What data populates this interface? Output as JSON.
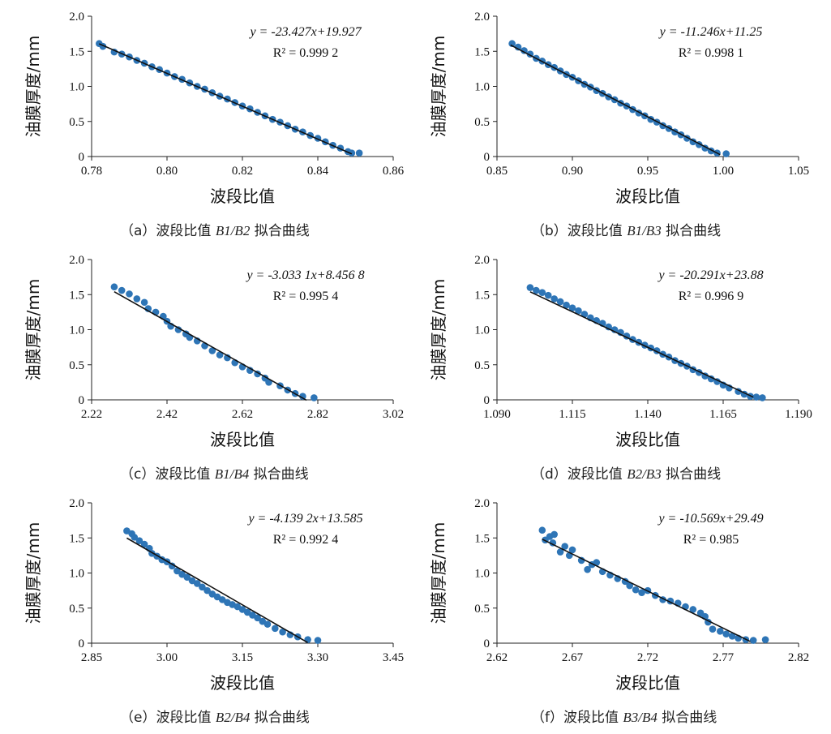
{
  "chart_data": [
    {
      "type": "scatter",
      "id": "a",
      "xlabel": "波段比值",
      "ylabel": "油膜厚度/mm",
      "xlim": [
        0.78,
        0.86
      ],
      "ylim": [
        0,
        2.0
      ],
      "xticks": [
        "0.78",
        "0.80",
        "0.82",
        "0.84",
        "0.86"
      ],
      "yticks": [
        "0",
        "0.5",
        "1.0",
        "1.5",
        "2.0"
      ],
      "equation": "y = -23.427x+19.927",
      "r2": "R² = 0.999 2",
      "fit": {
        "slope": -23.427,
        "intercept": 19.927,
        "x_range": [
          0.782,
          0.849
        ]
      },
      "points": [
        [
          0.782,
          1.61
        ],
        [
          0.783,
          1.57
        ],
        [
          0.786,
          1.49
        ],
        [
          0.788,
          1.46
        ],
        [
          0.79,
          1.42
        ],
        [
          0.792,
          1.37
        ],
        [
          0.794,
          1.33
        ],
        [
          0.796,
          1.28
        ],
        [
          0.798,
          1.24
        ],
        [
          0.8,
          1.19
        ],
        [
          0.802,
          1.14
        ],
        [
          0.804,
          1.1
        ],
        [
          0.806,
          1.05
        ],
        [
          0.808,
          1.0
        ],
        [
          0.81,
          0.96
        ],
        [
          0.812,
          0.91
        ],
        [
          0.814,
          0.86
        ],
        [
          0.816,
          0.82
        ],
        [
          0.818,
          0.77
        ],
        [
          0.82,
          0.72
        ],
        [
          0.822,
          0.68
        ],
        [
          0.824,
          0.63
        ],
        [
          0.826,
          0.58
        ],
        [
          0.828,
          0.53
        ],
        [
          0.83,
          0.49
        ],
        [
          0.832,
          0.44
        ],
        [
          0.834,
          0.39
        ],
        [
          0.836,
          0.35
        ],
        [
          0.838,
          0.3
        ],
        [
          0.84,
          0.26
        ],
        [
          0.842,
          0.21
        ],
        [
          0.844,
          0.16
        ],
        [
          0.846,
          0.12
        ],
        [
          0.848,
          0.07
        ],
        [
          0.849,
          0.05
        ],
        [
          0.851,
          0.05
        ]
      ]
    },
    {
      "type": "scatter",
      "id": "b",
      "xlabel": "波段比值",
      "ylabel": "油膜厚度/mm",
      "xlim": [
        0.85,
        1.05
      ],
      "ylim": [
        0,
        2.0
      ],
      "xticks": [
        "0.85",
        "0.90",
        "0.95",
        "1.00",
        "1.05"
      ],
      "yticks": [
        "0",
        "0.5",
        "1.0",
        "1.5",
        "2.0"
      ],
      "equation": "y = -11.246x+11.25",
      "r2": "R² = 0.998 1",
      "fit": {
        "slope": -11.246,
        "intercept": 11.25,
        "x_range": [
          0.859,
          0.998
        ]
      },
      "points": [
        [
          0.86,
          1.61
        ],
        [
          0.864,
          1.56
        ],
        [
          0.868,
          1.51
        ],
        [
          0.872,
          1.46
        ],
        [
          0.876,
          1.4
        ],
        [
          0.88,
          1.36
        ],
        [
          0.884,
          1.31
        ],
        [
          0.888,
          1.27
        ],
        [
          0.892,
          1.22
        ],
        [
          0.896,
          1.17
        ],
        [
          0.9,
          1.13
        ],
        [
          0.904,
          1.08
        ],
        [
          0.908,
          1.03
        ],
        [
          0.912,
          0.99
        ],
        [
          0.916,
          0.94
        ],
        [
          0.92,
          0.9
        ],
        [
          0.924,
          0.85
        ],
        [
          0.928,
          0.81
        ],
        [
          0.932,
          0.76
        ],
        [
          0.936,
          0.72
        ],
        [
          0.94,
          0.67
        ],
        [
          0.944,
          0.62
        ],
        [
          0.948,
          0.58
        ],
        [
          0.952,
          0.53
        ],
        [
          0.956,
          0.49
        ],
        [
          0.96,
          0.44
        ],
        [
          0.964,
          0.4
        ],
        [
          0.968,
          0.35
        ],
        [
          0.972,
          0.31
        ],
        [
          0.976,
          0.26
        ],
        [
          0.98,
          0.21
        ],
        [
          0.984,
          0.17
        ],
        [
          0.988,
          0.12
        ],
        [
          0.992,
          0.08
        ],
        [
          0.996,
          0.05
        ],
        [
          1.002,
          0.04
        ]
      ]
    },
    {
      "type": "scatter",
      "id": "c",
      "xlabel": "波段比值",
      "ylabel": "油膜厚度/mm",
      "xlim": [
        2.22,
        3.02
      ],
      "ylim": [
        0,
        2.0
      ],
      "xticks": [
        "2.22",
        "2.42",
        "2.62",
        "2.82",
        "3.02"
      ],
      "yticks": [
        "0",
        "0.5",
        "1.0",
        "1.5",
        "2.0"
      ],
      "equation": "y = -3.033 1x+8.456 8",
      "r2": "R² = 0.995 4",
      "fit": {
        "slope": -3.0331,
        "intercept": 8.4568,
        "x_range": [
          2.28,
          2.79
        ]
      },
      "points": [
        [
          2.28,
          1.61
        ],
        [
          2.3,
          1.56
        ],
        [
          2.32,
          1.51
        ],
        [
          2.34,
          1.44
        ],
        [
          2.36,
          1.39
        ],
        [
          2.37,
          1.3
        ],
        [
          2.39,
          1.25
        ],
        [
          2.41,
          1.19
        ],
        [
          2.42,
          1.12
        ],
        [
          2.43,
          1.05
        ],
        [
          2.45,
          1.0
        ],
        [
          2.47,
          0.94
        ],
        [
          2.48,
          0.89
        ],
        [
          2.5,
          0.84
        ],
        [
          2.52,
          0.77
        ],
        [
          2.54,
          0.7
        ],
        [
          2.56,
          0.64
        ],
        [
          2.58,
          0.6
        ],
        [
          2.6,
          0.53
        ],
        [
          2.62,
          0.47
        ],
        [
          2.64,
          0.42
        ],
        [
          2.66,
          0.37
        ],
        [
          2.68,
          0.31
        ],
        [
          2.69,
          0.25
        ],
        [
          2.72,
          0.2
        ],
        [
          2.74,
          0.14
        ],
        [
          2.76,
          0.09
        ],
        [
          2.78,
          0.05
        ],
        [
          2.81,
          0.03
        ]
      ]
    },
    {
      "type": "scatter",
      "id": "d",
      "xlabel": "波段比值",
      "ylabel": "油膜厚度/mm",
      "xlim": [
        1.09,
        1.19
      ],
      "ylim": [
        0,
        2.0
      ],
      "xticks": [
        "1.090",
        "1.115",
        "1.140",
        "1.165",
        "1.190"
      ],
      "yticks": [
        "0",
        "0.5",
        "1.0",
        "1.5",
        "2.0"
      ],
      "equation": "y = -20.291x+23.88",
      "r2": "R² = 0.996 9",
      "fit": {
        "slope": -20.291,
        "intercept": 23.88,
        "x_range": [
          1.101,
          1.175
        ]
      },
      "points": [
        [
          1.101,
          1.6
        ],
        [
          1.103,
          1.56
        ],
        [
          1.105,
          1.53
        ],
        [
          1.107,
          1.49
        ],
        [
          1.109,
          1.44
        ],
        [
          1.111,
          1.4
        ],
        [
          1.113,
          1.35
        ],
        [
          1.115,
          1.31
        ],
        [
          1.117,
          1.27
        ],
        [
          1.119,
          1.22
        ],
        [
          1.121,
          1.17
        ],
        [
          1.123,
          1.13
        ],
        [
          1.125,
          1.09
        ],
        [
          1.127,
          1.04
        ],
        [
          1.129,
          1.0
        ],
        [
          1.131,
          0.96
        ],
        [
          1.133,
          0.91
        ],
        [
          1.135,
          0.86
        ],
        [
          1.137,
          0.82
        ],
        [
          1.139,
          0.78
        ],
        [
          1.141,
          0.74
        ],
        [
          1.143,
          0.7
        ],
        [
          1.145,
          0.65
        ],
        [
          1.147,
          0.61
        ],
        [
          1.149,
          0.56
        ],
        [
          1.151,
          0.52
        ],
        [
          1.153,
          0.48
        ],
        [
          1.155,
          0.43
        ],
        [
          1.157,
          0.39
        ],
        [
          1.159,
          0.34
        ],
        [
          1.161,
          0.3
        ],
        [
          1.163,
          0.26
        ],
        [
          1.165,
          0.21
        ],
        [
          1.167,
          0.17
        ],
        [
          1.17,
          0.12
        ],
        [
          1.172,
          0.08
        ],
        [
          1.174,
          0.05
        ],
        [
          1.176,
          0.04
        ],
        [
          1.178,
          0.03
        ]
      ]
    },
    {
      "type": "scatter",
      "id": "e",
      "xlabel": "波段比值",
      "ylabel": "油膜厚度/mm",
      "xlim": [
        2.85,
        3.45
      ],
      "ylim": [
        0,
        2.0
      ],
      "xticks": [
        "2.85",
        "3.00",
        "3.15",
        "3.30",
        "3.45"
      ],
      "yticks": [
        "0",
        "0.5",
        "1.0",
        "1.5",
        "2.0"
      ],
      "equation": "y = -4.139 2x+13.585",
      "r2": "R² = 0.992 4",
      "fit": {
        "slope": -4.1392,
        "intercept": 13.585,
        "x_range": [
          2.92,
          3.28
        ]
      },
      "points": [
        [
          2.92,
          1.6
        ],
        [
          2.93,
          1.56
        ],
        [
          2.935,
          1.51
        ],
        [
          2.945,
          1.46
        ],
        [
          2.955,
          1.41
        ],
        [
          2.965,
          1.35
        ],
        [
          2.97,
          1.28
        ],
        [
          2.98,
          1.24
        ],
        [
          2.99,
          1.19
        ],
        [
          3.0,
          1.16
        ],
        [
          3.01,
          1.1
        ],
        [
          3.02,
          1.03
        ],
        [
          3.03,
          0.98
        ],
        [
          3.04,
          0.94
        ],
        [
          3.05,
          0.89
        ],
        [
          3.06,
          0.85
        ],
        [
          3.07,
          0.8
        ],
        [
          3.08,
          0.75
        ],
        [
          3.09,
          0.7
        ],
        [
          3.1,
          0.66
        ],
        [
          3.11,
          0.62
        ],
        [
          3.12,
          0.58
        ],
        [
          3.13,
          0.55
        ],
        [
          3.14,
          0.52
        ],
        [
          3.15,
          0.48
        ],
        [
          3.16,
          0.44
        ],
        [
          3.17,
          0.4
        ],
        [
          3.18,
          0.36
        ],
        [
          3.19,
          0.31
        ],
        [
          3.2,
          0.27
        ],
        [
          3.215,
          0.21
        ],
        [
          3.23,
          0.16
        ],
        [
          3.245,
          0.12
        ],
        [
          3.26,
          0.09
        ],
        [
          3.28,
          0.05
        ],
        [
          3.3,
          0.04
        ]
      ]
    },
    {
      "type": "scatter",
      "id": "f",
      "xlabel": "波段比值",
      "ylabel": "油膜厚度/mm",
      "xlim": [
        2.62,
        2.82
      ],
      "ylim": [
        0,
        2.0
      ],
      "xticks": [
        "2.62",
        "2.67",
        "2.72",
        "2.77",
        "2.82"
      ],
      "yticks": [
        "0",
        "0.5",
        "1.0",
        "1.5",
        "2.0"
      ],
      "equation": "y = -10.569x+29.49",
      "r2": "R² = 0.985",
      "fit": {
        "slope": -10.569,
        "intercept": 29.49,
        "x_range": [
          2.65,
          2.788
        ]
      },
      "points": [
        [
          2.65,
          1.61
        ],
        [
          2.652,
          1.47
        ],
        [
          2.655,
          1.52
        ],
        [
          2.657,
          1.43
        ],
        [
          2.658,
          1.55
        ],
        [
          2.662,
          1.3
        ],
        [
          2.665,
          1.38
        ],
        [
          2.668,
          1.25
        ],
        [
          2.67,
          1.33
        ],
        [
          2.676,
          1.18
        ],
        [
          2.68,
          1.05
        ],
        [
          2.683,
          1.12
        ],
        [
          2.686,
          1.15
        ],
        [
          2.69,
          1.02
        ],
        [
          2.695,
          0.97
        ],
        [
          2.7,
          0.92
        ],
        [
          2.705,
          0.88
        ],
        [
          2.708,
          0.82
        ],
        [
          2.712,
          0.76
        ],
        [
          2.716,
          0.72
        ],
        [
          2.72,
          0.75
        ],
        [
          2.725,
          0.68
        ],
        [
          2.73,
          0.62
        ],
        [
          2.735,
          0.6
        ],
        [
          2.74,
          0.57
        ],
        [
          2.745,
          0.52
        ],
        [
          2.75,
          0.48
        ],
        [
          2.755,
          0.43
        ],
        [
          2.758,
          0.38
        ],
        [
          2.76,
          0.3
        ],
        [
          2.763,
          0.2
        ],
        [
          2.768,
          0.17
        ],
        [
          2.772,
          0.13
        ],
        [
          2.776,
          0.1
        ],
        [
          2.78,
          0.07
        ],
        [
          2.785,
          0.05
        ],
        [
          2.79,
          0.04
        ],
        [
          2.798,
          0.05
        ]
      ]
    }
  ],
  "captions": [
    {
      "prefix": "（a）波段比值 ",
      "ratio": "B1/B2",
      "suffix": " 拟合曲线"
    },
    {
      "prefix": "（b）波段比值 ",
      "ratio": "B1/B3",
      "suffix": " 拟合曲线"
    },
    {
      "prefix": "（c）波段比值 ",
      "ratio": "B1/B4",
      "suffix": " 拟合曲线"
    },
    {
      "prefix": "（d）波段比值 ",
      "ratio": "B2/B3",
      "suffix": " 拟合曲线"
    },
    {
      "prefix": "（e）波段比值 ",
      "ratio": "B2/B4",
      "suffix": " 拟合曲线"
    },
    {
      "prefix": "（f）波段比值 ",
      "ratio": "B3/B4",
      "suffix": " 拟合曲线"
    }
  ],
  "colors": {
    "point": "#2e75b6",
    "line": "#111111",
    "axis": "#222222"
  }
}
